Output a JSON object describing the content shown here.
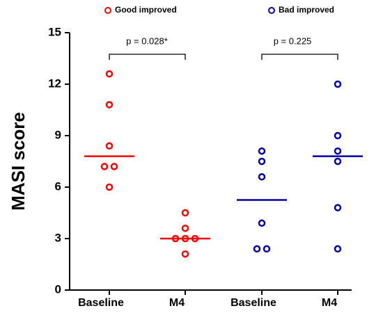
{
  "chart_data": {
    "type": "strip",
    "y_label": "MASI score",
    "categories": [
      "Baseline",
      "M4",
      "Baseline",
      "M4"
    ],
    "ylim": [
      0,
      15
    ],
    "yticks": [
      0,
      3,
      6,
      9,
      12,
      15
    ],
    "series": [
      {
        "name": "Good improved",
        "color": "#ff0000",
        "values": [
          [
            12.6,
            10.8,
            8.4,
            7.2,
            7.2,
            6.0
          ],
          [
            4.5,
            3.6,
            3.0,
            3.0,
            3.0,
            2.1
          ],
          null,
          null
        ],
        "lines": [
          7.8,
          3.0,
          null,
          null
        ]
      },
      {
        "name": "Bad improved",
        "color": "#0000aa",
        "values": [
          null,
          null,
          [
            8.1,
            7.5,
            6.6,
            3.9,
            2.4,
            2.4
          ],
          [
            12.0,
            9.0,
            8.1,
            7.5,
            4.8,
            2.4
          ]
        ],
        "lines": [
          null,
          null,
          5.25,
          7.8
        ]
      }
    ],
    "annotations": [
      "p = 0.028*",
      "p = 0.225"
    ]
  }
}
